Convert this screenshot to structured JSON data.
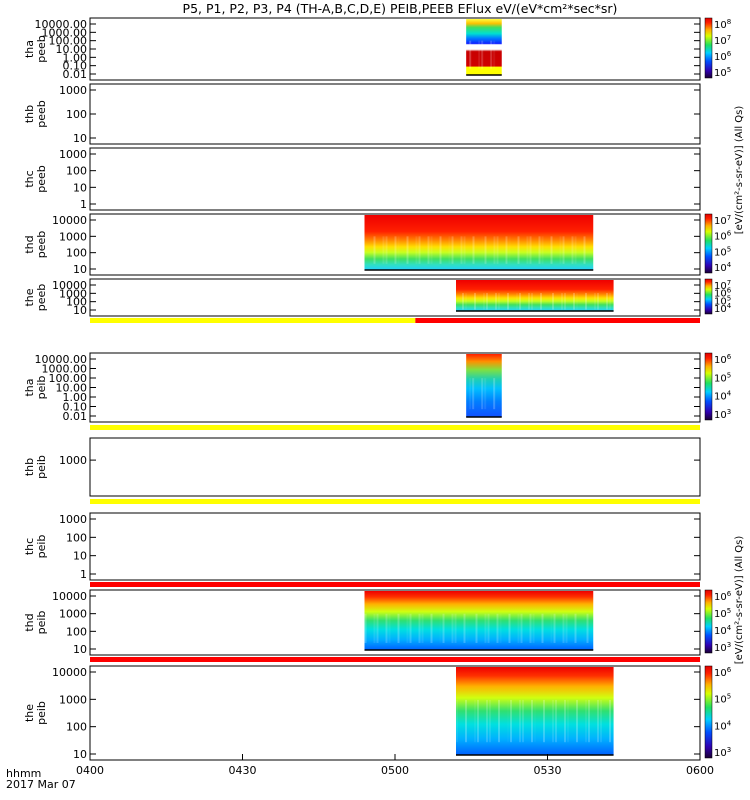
{
  "title": "P5, P1, P2, P3, P4 (TH-A,B,C,D,E) PEIB,PEEB EFlux eV/(eV*cm²*sec*sr)",
  "time_axis": {
    "label_line1": "hhmm",
    "label_line2": "2017 Mar 07",
    "ticks": [
      "0400",
      "0430",
      "0500",
      "0530",
      "0600"
    ],
    "range_minutes": [
      0,
      120
    ]
  },
  "colorbar_units_a": "[eV/(cm²-s-sr-eV)] (All Qs)",
  "colorbar_units_b": "[eV/(cm²-s-sr-eV)] (All Qs)",
  "chart_data": {
    "type": "heatmap",
    "x_units": "minutes after 0400 UT, 2017 Mar 07",
    "panels": [
      {
        "probe": "tha",
        "product": "peeb",
        "ylabel": "tha\npeeb",
        "ytick_labels": [
          "10000.00",
          "1000.00",
          "100.00",
          "10.00",
          "1.00",
          "0.10",
          "0.01"
        ],
        "y_log": true,
        "data_x": [
          74,
          81
        ],
        "colorbar_ticks": [
          "10^8",
          "10^7",
          "10^6",
          "10^5"
        ],
        "colorbar": true
      },
      {
        "probe": "thb",
        "product": "peeb",
        "ylabel": "thb\npeeb",
        "ytick_labels": [
          "1000",
          "100",
          "10"
        ],
        "y_log": true,
        "data_x": null,
        "colorbar": false
      },
      {
        "probe": "thc",
        "product": "peeb",
        "ylabel": "thc\npeeb",
        "ytick_labels": [
          "1000",
          "100",
          "10",
          "1"
        ],
        "y_log": true,
        "data_x": null,
        "colorbar": false
      },
      {
        "probe": "thd",
        "product": "peeb",
        "ylabel": "thd\npeeb",
        "ytick_labels": [
          "10000",
          "1000",
          "100",
          "10"
        ],
        "y_log": true,
        "data_x": [
          54,
          99
        ],
        "colorbar_ticks": [
          "10^7",
          "10^6",
          "10^5",
          "10^4"
        ],
        "colorbar": true
      },
      {
        "probe": "the",
        "product": "peeb",
        "ylabel": "the\npeeb",
        "ytick_labels": [
          "10000",
          "1000",
          "100",
          "10"
        ],
        "y_log": true,
        "data_x": [
          72,
          103
        ],
        "colorbar_ticks": [
          "10^7",
          "10^6",
          "10^5",
          "10^4"
        ],
        "colorbar": true
      },
      {
        "probe": "tha",
        "product": "peib",
        "ylabel": "tha\npeib",
        "ytick_labels": [
          "10000.00",
          "1000.00",
          "100.00",
          "10.00",
          "1.00",
          "0.10",
          "0.01"
        ],
        "y_log": true,
        "data_x": [
          74,
          81
        ],
        "colorbar_ticks": [
          "10^6",
          "10^5",
          "10^4",
          "10^3"
        ],
        "colorbar": true
      },
      {
        "probe": "thb",
        "product": "peib",
        "ylabel": "thb\npeib",
        "ytick_labels": [
          "1000"
        ],
        "y_log": true,
        "data_x": null,
        "colorbar": false
      },
      {
        "probe": "thc",
        "product": "peib",
        "ylabel": "thc\npeib",
        "ytick_labels": [
          "1000",
          "100",
          "10",
          "1"
        ],
        "y_log": true,
        "data_x": null,
        "colorbar": false
      },
      {
        "probe": "thd",
        "product": "peib",
        "ylabel": "thd\npeib",
        "ytick_labels": [
          "10000",
          "1000",
          "100",
          "10"
        ],
        "y_log": true,
        "data_x": [
          54,
          99
        ],
        "colorbar_ticks": [
          "10^6",
          "10^5",
          "10^4",
          "10^3"
        ],
        "colorbar": true
      },
      {
        "probe": "the",
        "product": "peib",
        "ylabel": "the\npeib",
        "ytick_labels": [
          "10000",
          "1000",
          "100",
          "10"
        ],
        "y_log": true,
        "data_x": [
          72,
          103
        ],
        "colorbar_ticks": [
          "10^6",
          "10^5",
          "10^4",
          "10^3"
        ],
        "colorbar": true
      }
    ],
    "mode_bars": [
      {
        "between_panels": [
          "the peeb",
          "tha peib"
        ],
        "segments": [
          {
            "x": [
              0,
              64
            ],
            "color": "#ffff00"
          },
          {
            "x": [
              64,
              120
            ],
            "color": "#ff0000"
          }
        ]
      },
      {
        "between_panels": [
          "tha peib",
          "thb peib"
        ],
        "segments": [
          {
            "x": [
              0,
              120
            ],
            "color": "#ffff00"
          }
        ]
      },
      {
        "between_panels": [
          "thb peib",
          "thc peib"
        ],
        "segments": [
          {
            "x": [
              0,
              120
            ],
            "color": "#ffff00"
          }
        ]
      },
      {
        "between_panels": [
          "thc peib",
          "thd peib"
        ],
        "segments": [
          {
            "x": [
              0,
              120
            ],
            "color": "#ff0000"
          }
        ]
      },
      {
        "between_panels": [
          "thd peib",
          "the peib"
        ],
        "segments": [
          {
            "x": [
              0,
              120
            ],
            "color": "#ff0000"
          }
        ]
      }
    ]
  }
}
